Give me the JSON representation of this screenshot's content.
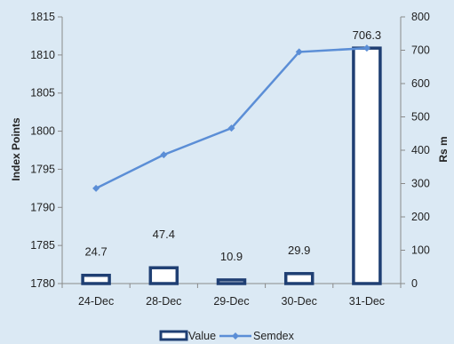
{
  "chart_data": {
    "type": "bar+line",
    "categories": [
      "24-Dec",
      "28-Dec",
      "29-Dec",
      "30-Dec",
      "31-Dec"
    ],
    "series": [
      {
        "name": "Value",
        "type": "bar",
        "axis": "right",
        "values": [
          24.7,
          47.4,
          10.9,
          29.9,
          706.3
        ],
        "data_labels": [
          "24.7",
          "47.4",
          "10.9",
          "29.9",
          "706.3"
        ],
        "fill_color": "#ffffff",
        "border_color": "#1f3f73"
      },
      {
        "name": "Semdex",
        "type": "line",
        "axis": "left",
        "values": [
          1792.5,
          1796.9,
          1800.4,
          1810.4,
          1810.9
        ],
        "color": "#5b8ed6"
      }
    ],
    "ylabel": "Index Points",
    "y2label": "Rs m",
    "ylim": [
      1780,
      1815
    ],
    "y2lim": [
      0,
      800
    ],
    "yticks": [
      "1780",
      "1785",
      "1790",
      "1795",
      "1800",
      "1805",
      "1810",
      "1815"
    ],
    "y2ticks": [
      "0",
      "100",
      "200",
      "300",
      "400",
      "500",
      "600",
      "700",
      "800"
    ],
    "grid": false,
    "legend_position": "bottom",
    "background_color": "#dbe9f4"
  }
}
